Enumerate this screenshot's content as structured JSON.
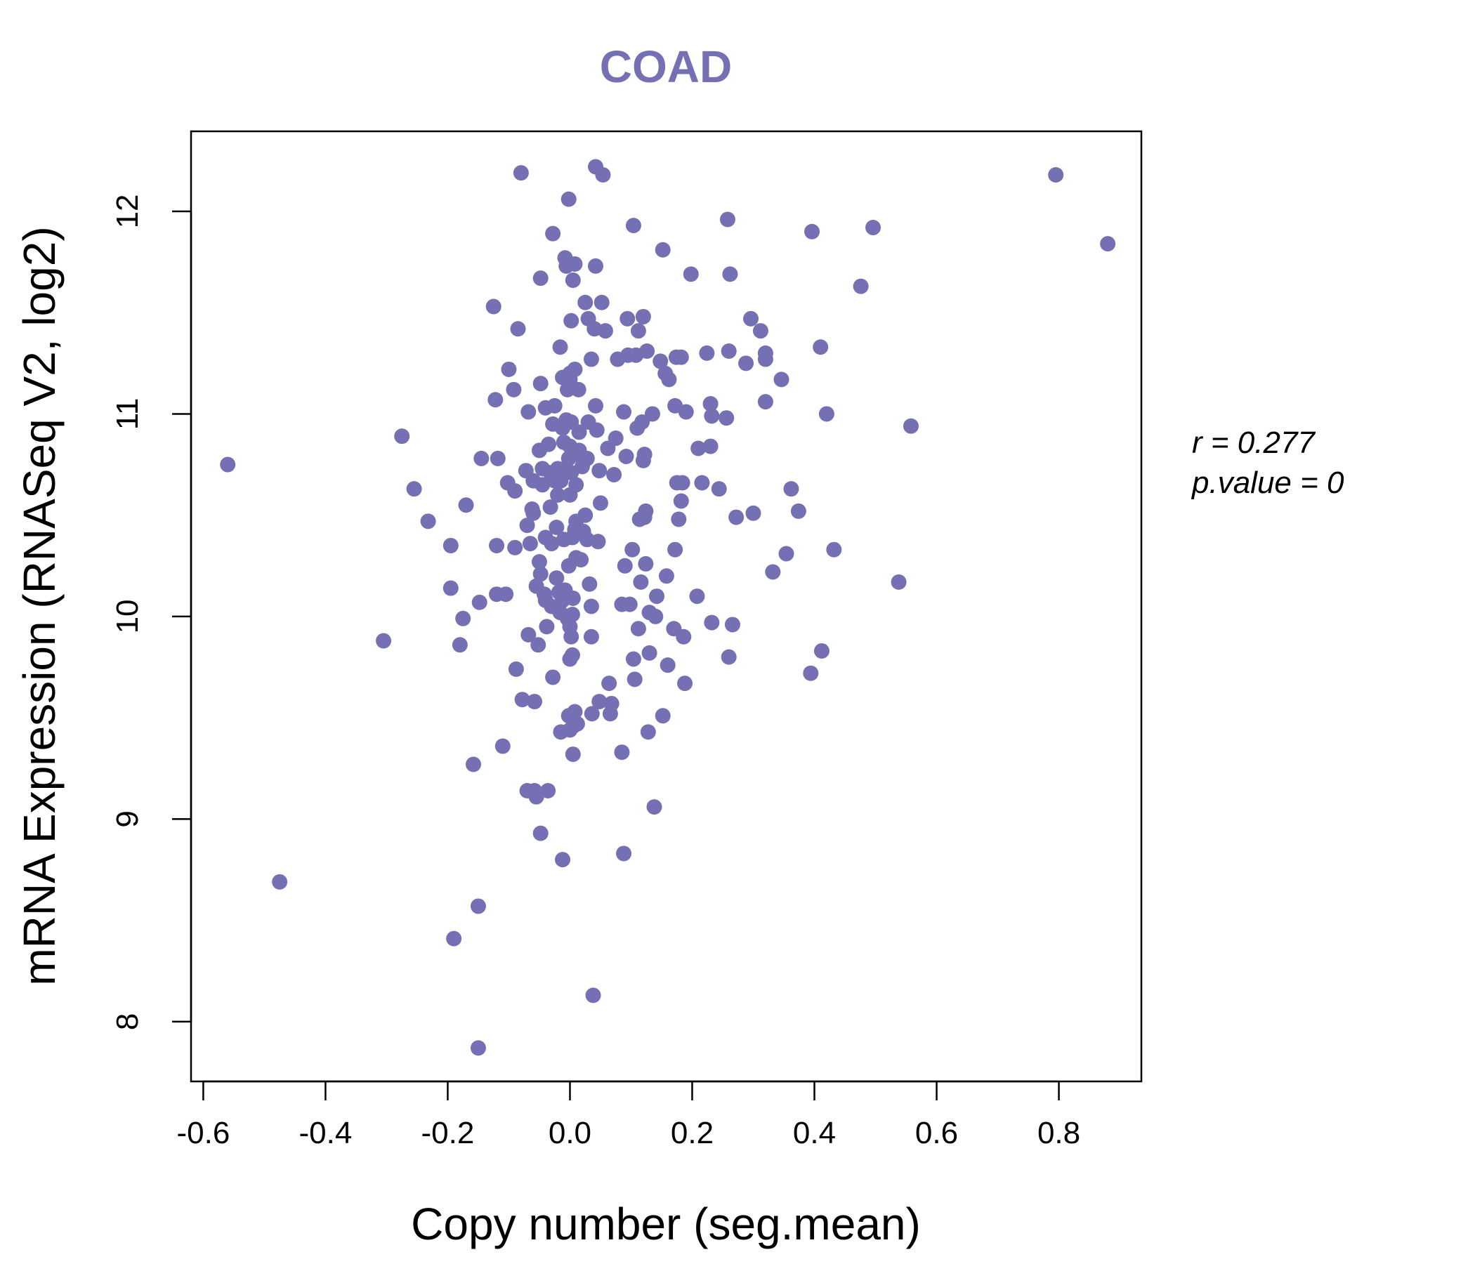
{
  "chart_data": {
    "type": "scatter",
    "title": "COAD",
    "xlabel": "Copy number (seg.mean)",
    "ylabel": "mRNA Expression (RNASeq V2, log2)",
    "xlim": [
      -0.62,
      0.935
    ],
    "ylim": [
      7.705,
      12.395
    ],
    "x_ticks": [
      -0.6,
      -0.4,
      -0.2,
      0.0,
      0.2,
      0.4,
      0.6,
      0.8
    ],
    "x_tick_labels": [
      "-0.6",
      "-0.4",
      "-0.2",
      "0.0",
      "0.2",
      "0.4",
      "0.6",
      "0.8"
    ],
    "y_ticks": [
      8,
      9,
      10,
      11,
      12
    ],
    "y_tick_labels": [
      "8",
      "9",
      "10",
      "11",
      "12"
    ],
    "annotation_lines": [
      "r = 0.277",
      "p.value = 0"
    ],
    "point_color": "#7570b3",
    "grid": false,
    "legend": "none",
    "points": [
      [
        -0.56,
        10.75
      ],
      [
        -0.475,
        8.69
      ],
      [
        -0.305,
        9.88
      ],
      [
        -0.275,
        10.89
      ],
      [
        -0.255,
        10.63
      ],
      [
        -0.232,
        10.47
      ],
      [
        -0.195,
        10.35
      ],
      [
        -0.195,
        10.14
      ],
      [
        -0.19,
        8.41
      ],
      [
        -0.18,
        9.86
      ],
      [
        -0.175,
        9.99
      ],
      [
        -0.17,
        10.55
      ],
      [
        -0.158,
        9.27
      ],
      [
        -0.15,
        8.57
      ],
      [
        -0.15,
        7.87
      ],
      [
        -0.148,
        10.07
      ],
      [
        -0.145,
        10.78
      ],
      [
        -0.125,
        11.53
      ],
      [
        -0.122,
        11.07
      ],
      [
        -0.12,
        10.35
      ],
      [
        -0.12,
        10.11
      ],
      [
        -0.118,
        10.78
      ],
      [
        -0.11,
        9.36
      ],
      [
        -0.105,
        10.11
      ],
      [
        -0.102,
        10.66
      ],
      [
        -0.1,
        11.22
      ],
      [
        -0.092,
        11.12
      ],
      [
        -0.09,
        10.34
      ],
      [
        -0.09,
        10.62
      ],
      [
        -0.088,
        9.74
      ],
      [
        -0.085,
        11.42
      ],
      [
        -0.08,
        12.19
      ],
      [
        -0.078,
        9.59
      ],
      [
        -0.072,
        10.72
      ],
      [
        -0.07,
        10.45
      ],
      [
        -0.07,
        9.14
      ],
      [
        -0.068,
        11.01
      ],
      [
        -0.068,
        9.91
      ],
      [
        -0.065,
        10.36
      ],
      [
        -0.062,
        10.53
      ],
      [
        -0.06,
        10.67
      ],
      [
        -0.06,
        10.51
      ],
      [
        -0.058,
        9.58
      ],
      [
        -0.058,
        9.14
      ],
      [
        -0.055,
        10.15
      ],
      [
        -0.055,
        9.11
      ],
      [
        -0.052,
        9.86
      ],
      [
        -0.05,
        10.82
      ],
      [
        -0.05,
        10.27
      ],
      [
        -0.048,
        11.67
      ],
      [
        -0.048,
        11.15
      ],
      [
        -0.048,
        10.21
      ],
      [
        -0.048,
        8.93
      ],
      [
        -0.045,
        10.65
      ],
      [
        -0.045,
        10.73
      ],
      [
        -0.042,
        10.11
      ],
      [
        -0.04,
        11.03
      ],
      [
        -0.04,
        10.39
      ],
      [
        -0.04,
        10.08
      ],
      [
        -0.038,
        9.95
      ],
      [
        -0.036,
        9.14
      ],
      [
        -0.035,
        10.85
      ],
      [
        -0.032,
        10.54
      ],
      [
        -0.032,
        10.71
      ],
      [
        -0.03,
        10.36
      ],
      [
        -0.03,
        10.05
      ],
      [
        -0.028,
        11.89
      ],
      [
        -0.028,
        10.95
      ],
      [
        -0.028,
        9.7
      ],
      [
        -0.025,
        11.04
      ],
      [
        -0.025,
        10.67
      ],
      [
        -0.022,
        10.44
      ],
      [
        -0.022,
        10.19
      ],
      [
        -0.02,
        10.73
      ],
      [
        -0.02,
        10.6
      ],
      [
        -0.018,
        10.12
      ],
      [
        -0.016,
        11.33
      ],
      [
        -0.016,
        10.02
      ],
      [
        -0.015,
        9.43
      ],
      [
        -0.015,
        10.67
      ],
      [
        -0.012,
        11.18
      ],
      [
        -0.012,
        10.93
      ],
      [
        -0.012,
        10.08
      ],
      [
        -0.012,
        8.8
      ],
      [
        -0.01,
        10.86
      ],
      [
        -0.01,
        10.72
      ],
      [
        -0.01,
        10.38
      ],
      [
        -0.008,
        11.77
      ],
      [
        -0.008,
        10.13
      ],
      [
        -0.006,
        11.73
      ],
      [
        -0.006,
        10.97
      ],
      [
        -0.005,
        10.0
      ],
      [
        -0.004,
        11.12
      ],
      [
        -0.004,
        9.99
      ],
      [
        -0.002,
        12.06
      ],
      [
        -0.002,
        10.78
      ],
      [
        -0.002,
        10.25
      ],
      [
        -0.002,
        9.51
      ],
      [
        0.0,
        11.2
      ],
      [
        0.0,
        11.17
      ],
      [
        0.0,
        10.84
      ],
      [
        0.0,
        10.6
      ],
      [
        0.0,
        9.44
      ],
      [
        0.0,
        9.95
      ],
      [
        0.0,
        9.79
      ],
      [
        0.002,
        11.46
      ],
      [
        0.002,
        10.96
      ],
      [
        0.002,
        10.71
      ],
      [
        0.002,
        9.9
      ],
      [
        0.004,
        10.39
      ],
      [
        0.004,
        10.01
      ],
      [
        0.004,
        9.81
      ],
      [
        0.005,
        11.66
      ],
      [
        0.005,
        10.09
      ],
      [
        0.005,
        9.32
      ],
      [
        0.006,
        10.8
      ],
      [
        0.006,
        9.46
      ],
      [
        0.008,
        11.74
      ],
      [
        0.008,
        11.22
      ],
      [
        0.008,
        10.43
      ],
      [
        0.008,
        9.53
      ],
      [
        0.01,
        10.65
      ],
      [
        0.01,
        10.47
      ],
      [
        0.01,
        10.29
      ],
      [
        0.012,
        10.41
      ],
      [
        0.012,
        9.47
      ],
      [
        0.014,
        11.12
      ],
      [
        0.015,
        10.91
      ],
      [
        0.015,
        10.82
      ],
      [
        0.018,
        10.28
      ],
      [
        0.02,
        10.74
      ],
      [
        0.022,
        10.42
      ],
      [
        0.025,
        11.55
      ],
      [
        0.025,
        10.5
      ],
      [
        0.028,
        10.78
      ],
      [
        0.028,
        10.38
      ],
      [
        0.03,
        11.47
      ],
      [
        0.03,
        10.96
      ],
      [
        0.032,
        10.16
      ],
      [
        0.035,
        11.27
      ],
      [
        0.035,
        10.05
      ],
      [
        0.035,
        9.9
      ],
      [
        0.036,
        9.52
      ],
      [
        0.038,
        8.13
      ],
      [
        0.04,
        11.42
      ],
      [
        0.042,
        12.22
      ],
      [
        0.042,
        11.04
      ],
      [
        0.042,
        11.73
      ],
      [
        0.044,
        10.92
      ],
      [
        0.046,
        10.37
      ],
      [
        0.048,
        10.72
      ],
      [
        0.048,
        9.58
      ],
      [
        0.05,
        10.56
      ],
      [
        0.052,
        11.55
      ],
      [
        0.054,
        12.18
      ],
      [
        0.058,
        11.41
      ],
      [
        0.062,
        10.83
      ],
      [
        0.064,
        9.67
      ],
      [
        0.066,
        9.52
      ],
      [
        0.068,
        9.57
      ],
      [
        0.072,
        10.7
      ],
      [
        0.075,
        10.88
      ],
      [
        0.078,
        11.27
      ],
      [
        0.085,
        9.33
      ],
      [
        0.085,
        10.06
      ],
      [
        0.088,
        11.01
      ],
      [
        0.088,
        8.83
      ],
      [
        0.09,
        10.25
      ],
      [
        0.092,
        10.79
      ],
      [
        0.094,
        11.47
      ],
      [
        0.095,
        11.29
      ],
      [
        0.098,
        10.06
      ],
      [
        0.102,
        10.33
      ],
      [
        0.104,
        11.93
      ],
      [
        0.104,
        9.79
      ],
      [
        0.106,
        9.69
      ],
      [
        0.108,
        11.29
      ],
      [
        0.11,
        10.93
      ],
      [
        0.112,
        9.94
      ],
      [
        0.112,
        11.41
      ],
      [
        0.114,
        10.48
      ],
      [
        0.116,
        10.17
      ],
      [
        0.118,
        10.96
      ],
      [
        0.12,
        10.77
      ],
      [
        0.12,
        11.48
      ],
      [
        0.122,
        10.8
      ],
      [
        0.122,
        10.49
      ],
      [
        0.124,
        10.52
      ],
      [
        0.124,
        10.26
      ],
      [
        0.126,
        11.31
      ],
      [
        0.128,
        9.43
      ],
      [
        0.13,
        9.82
      ],
      [
        0.13,
        10.02
      ],
      [
        0.135,
        11.0
      ],
      [
        0.138,
        9.06
      ],
      [
        0.14,
        10.0
      ],
      [
        0.142,
        10.1
      ],
      [
        0.148,
        11.26
      ],
      [
        0.152,
        11.81
      ],
      [
        0.152,
        9.51
      ],
      [
        0.156,
        11.2
      ],
      [
        0.158,
        10.2
      ],
      [
        0.16,
        9.76
      ],
      [
        0.162,
        11.17
      ],
      [
        0.17,
        9.94
      ],
      [
        0.172,
        10.33
      ],
      [
        0.172,
        11.04
      ],
      [
        0.174,
        11.28
      ],
      [
        0.175,
        10.66
      ],
      [
        0.178,
        10.48
      ],
      [
        0.182,
        11.28
      ],
      [
        0.182,
        10.57
      ],
      [
        0.184,
        10.66
      ],
      [
        0.186,
        9.9
      ],
      [
        0.188,
        9.67
      ],
      [
        0.19,
        11.01
      ],
      [
        0.198,
        11.69
      ],
      [
        0.208,
        10.1
      ],
      [
        0.21,
        10.83
      ],
      [
        0.216,
        10.66
      ],
      [
        0.224,
        11.3
      ],
      [
        0.23,
        10.84
      ],
      [
        0.23,
        11.05
      ],
      [
        0.232,
        10.99
      ],
      [
        0.232,
        9.97
      ],
      [
        0.244,
        10.63
      ],
      [
        0.256,
        10.98
      ],
      [
        0.258,
        11.96
      ],
      [
        0.26,
        9.8
      ],
      [
        0.26,
        11.31
      ],
      [
        0.262,
        11.69
      ],
      [
        0.266,
        9.96
      ],
      [
        0.272,
        10.49
      ],
      [
        0.288,
        11.25
      ],
      [
        0.296,
        11.47
      ],
      [
        0.3,
        10.51
      ],
      [
        0.312,
        11.41
      ],
      [
        0.32,
        11.3
      ],
      [
        0.32,
        11.27
      ],
      [
        0.32,
        11.06
      ],
      [
        0.332,
        10.22
      ],
      [
        0.346,
        11.17
      ],
      [
        0.354,
        10.31
      ],
      [
        0.362,
        10.63
      ],
      [
        0.374,
        10.52
      ],
      [
        0.394,
        9.72
      ],
      [
        0.396,
        11.9
      ],
      [
        0.41,
        11.33
      ],
      [
        0.412,
        9.83
      ],
      [
        0.42,
        11.0
      ],
      [
        0.432,
        10.33
      ],
      [
        0.476,
        11.63
      ],
      [
        0.496,
        11.92
      ],
      [
        0.538,
        10.17
      ],
      [
        0.558,
        10.94
      ],
      [
        0.795,
        12.18
      ],
      [
        0.88,
        11.84
      ]
    ]
  }
}
